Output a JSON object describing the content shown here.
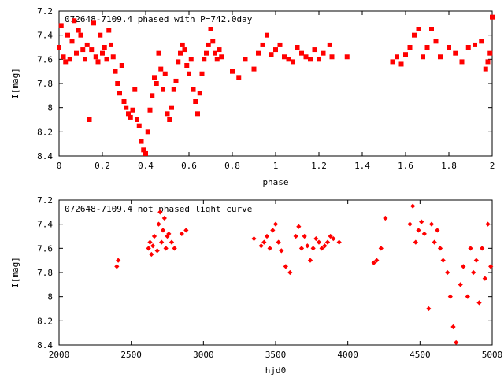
{
  "chart_data": [
    {
      "type": "scatter",
      "title": "072648-7109.4 phased with P=742.0day",
      "xlabel": "phase",
      "ylabel": "I[mag]",
      "xlim": [
        0,
        2
      ],
      "ylim": [
        8.4,
        7.2
      ],
      "y_inverted": true,
      "grid": false,
      "marker_color": "#ff0000",
      "x_ticks": [
        "0",
        "0.2",
        "0.4",
        "0.6",
        "0.8",
        "1",
        "1.2",
        "1.4",
        "1.6",
        "1.8",
        "2"
      ],
      "y_ticks": [
        "7.2",
        "7.4",
        "7.6",
        "7.8",
        "8",
        "8.2",
        "8.4"
      ],
      "series": [
        {
          "x": [
            0.0,
            0.01,
            0.02,
            0.03,
            0.04,
            0.05,
            0.06,
            0.07,
            0.08,
            0.09,
            0.1,
            0.11,
            0.12,
            0.13,
            0.14,
            0.15,
            0.16,
            0.17,
            0.18,
            0.19,
            0.2,
            0.21,
            0.22,
            0.23,
            0.24,
            0.25,
            0.26,
            0.27,
            0.28,
            0.29,
            0.3,
            0.31,
            0.32,
            0.33,
            0.34,
            0.35,
            0.36,
            0.37,
            0.38,
            0.39,
            0.4,
            0.41,
            0.42,
            0.43,
            0.44,
            0.45,
            0.46,
            0.47,
            0.48,
            0.49,
            0.5,
            0.51,
            0.52,
            0.53,
            0.54,
            0.55,
            0.56,
            0.57,
            0.58,
            0.59,
            0.6,
            0.61,
            0.62,
            0.63,
            0.64,
            0.65,
            0.66,
            0.67,
            0.68,
            0.69,
            0.7,
            0.71,
            0.72,
            0.73,
            0.74,
            0.75,
            0.8,
            0.83,
            0.86,
            0.9,
            0.92,
            0.94,
            0.96,
            0.98,
            1.0,
            1.02,
            1.04,
            1.06,
            1.08,
            1.1,
            1.12,
            1.14,
            1.16,
            1.18,
            1.2,
            1.22,
            1.25,
            1.26,
            1.33,
            1.54,
            1.56,
            1.58,
            1.6,
            1.62,
            1.64,
            1.66,
            1.68,
            1.7,
            1.72,
            1.74,
            1.76,
            1.8,
            1.83,
            1.86,
            1.89,
            1.92,
            1.95,
            1.97,
            1.98,
            1.99,
            2.0
          ],
          "y": [
            7.5,
            7.32,
            7.58,
            7.62,
            7.4,
            7.6,
            7.45,
            7.28,
            7.55,
            7.36,
            7.4,
            7.52,
            7.6,
            7.48,
            8.1,
            7.52,
            7.3,
            7.58,
            7.62,
            7.4,
            7.55,
            7.5,
            7.6,
            7.36,
            7.48,
            7.58,
            7.7,
            7.8,
            7.88,
            7.65,
            7.95,
            8.0,
            8.05,
            8.08,
            8.02,
            7.85,
            8.1,
            8.15,
            8.28,
            8.35,
            8.38,
            8.2,
            8.02,
            7.9,
            7.75,
            7.8,
            7.55,
            7.68,
            7.85,
            7.72,
            8.05,
            8.1,
            8.0,
            7.85,
            7.78,
            7.62,
            7.55,
            7.48,
            7.52,
            7.65,
            7.72,
            7.6,
            7.85,
            7.95,
            8.05,
            7.88,
            7.72,
            7.6,
            7.55,
            7.48,
            7.35,
            7.45,
            7.55,
            7.6,
            7.52,
            7.58,
            7.7,
            7.75,
            7.6,
            7.68,
            7.55,
            7.48,
            7.4,
            7.56,
            7.52,
            7.48,
            7.58,
            7.6,
            7.62,
            7.5,
            7.55,
            7.58,
            7.6,
            7.52,
            7.6,
            7.55,
            7.48,
            7.58,
            7.58,
            7.62,
            7.58,
            7.64,
            7.56,
            7.5,
            7.4,
            7.35,
            7.58,
            7.5,
            7.35,
            7.45,
            7.58,
            7.5,
            7.55,
            7.62,
            7.5,
            7.48,
            7.45,
            7.68,
            7.62,
            7.55,
            7.25
          ]
        }
      ]
    },
    {
      "type": "scatter",
      "title": "072648-7109.4 not phased light curve",
      "xlabel": "hjd0",
      "ylabel": "I[mag]",
      "xlim": [
        2000,
        5000
      ],
      "ylim": [
        8.4,
        7.2
      ],
      "y_inverted": true,
      "grid": false,
      "marker_color": "#ff0000",
      "x_ticks": [
        "2000",
        "2500",
        "3000",
        "3500",
        "4000",
        "4500",
        "5000"
      ],
      "y_ticks": [
        "7.2",
        "7.4",
        "7.6",
        "7.8",
        "8",
        "8.2",
        "8.4"
      ],
      "series": [
        {
          "x": [
            2400,
            2410,
            2620,
            2630,
            2640,
            2650,
            2660,
            2680,
            2690,
            2700,
            2710,
            2720,
            2730,
            2740,
            2750,
            2760,
            2780,
            2800,
            2850,
            2880,
            3350,
            3400,
            3420,
            3440,
            3460,
            3480,
            3500,
            3520,
            3540,
            3570,
            3600,
            3640,
            3660,
            3680,
            3700,
            3720,
            3740,
            3760,
            3780,
            3800,
            3820,
            3840,
            3860,
            3880,
            3900,
            3940,
            4180,
            4200,
            4230,
            4260,
            4430,
            4450,
            4470,
            4490,
            4510,
            4530,
            4560,
            4580,
            4600,
            4620,
            4640,
            4660,
            4690,
            4710,
            4730,
            4750,
            4780,
            4800,
            4830,
            4850,
            4870,
            4890,
            4910,
            4930,
            4950,
            4970,
            4990
          ],
          "y": [
            7.75,
            7.7,
            7.6,
            7.55,
            7.65,
            7.58,
            7.5,
            7.62,
            7.4,
            7.3,
            7.55,
            7.45,
            7.35,
            7.6,
            7.5,
            7.48,
            7.55,
            7.6,
            7.48,
            7.45,
            7.52,
            7.58,
            7.55,
            7.5,
            7.6,
            7.45,
            7.4,
            7.55,
            7.62,
            7.75,
            7.8,
            7.5,
            7.42,
            7.6,
            7.5,
            7.58,
            7.7,
            7.6,
            7.52,
            7.55,
            7.6,
            7.58,
            7.55,
            7.5,
            7.52,
            7.55,
            7.72,
            7.7,
            7.6,
            7.35,
            7.4,
            7.25,
            7.55,
            7.45,
            7.38,
            7.48,
            8.1,
            7.4,
            7.55,
            7.45,
            7.6,
            7.7,
            7.8,
            8.0,
            8.25,
            8.38,
            7.9,
            7.75,
            8.0,
            7.6,
            7.8,
            7.7,
            8.05,
            7.6,
            7.85,
            7.4,
            7.75
          ]
        }
      ]
    }
  ]
}
